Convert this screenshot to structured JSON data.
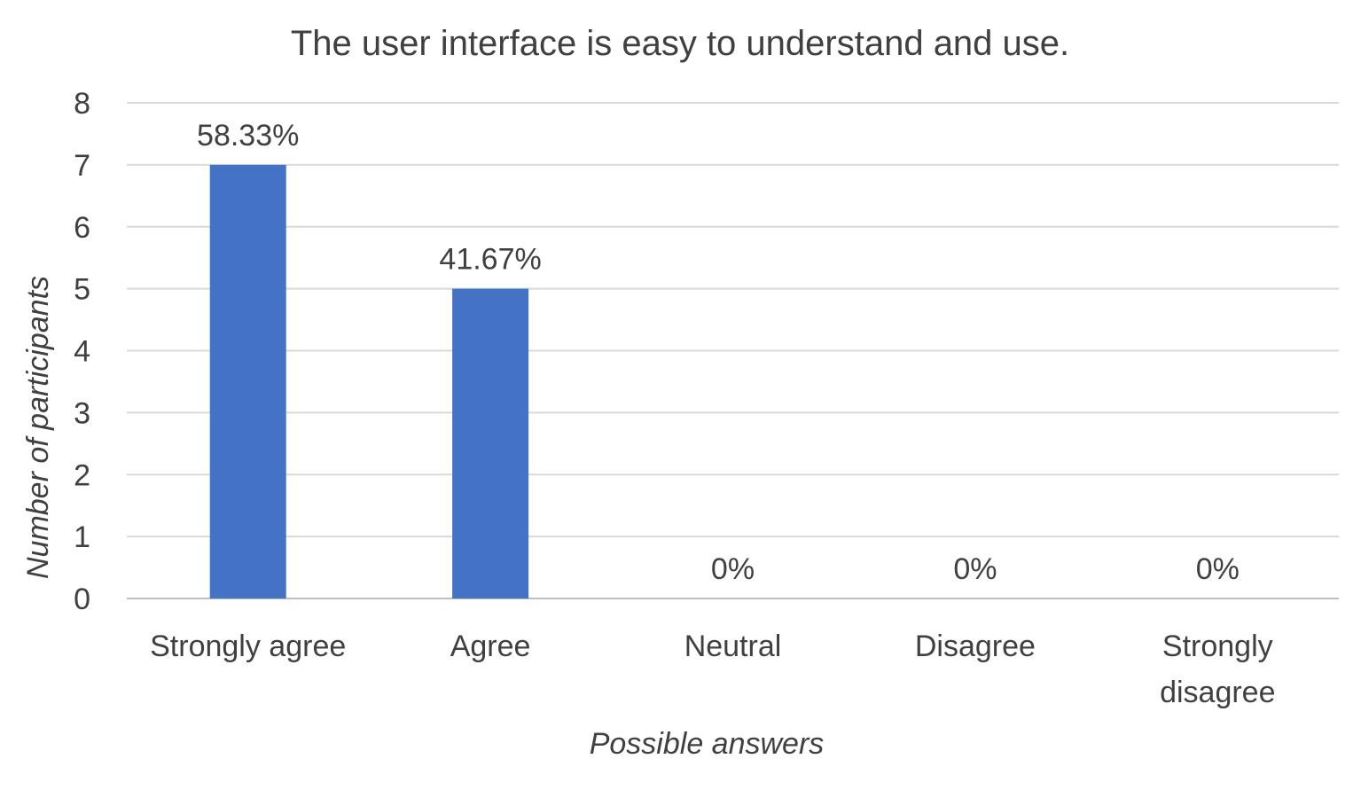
{
  "chart_data": {
    "type": "bar",
    "title": "The user interface is easy to understand and use.",
    "xlabel": "Possible answers",
    "ylabel": "Number of participants",
    "categories": [
      [
        "Strongly agree"
      ],
      [
        "Agree"
      ],
      [
        "Neutral"
      ],
      [
        "Disagree"
      ],
      [
        "Strongly",
        "disagree"
      ]
    ],
    "values": [
      7,
      5,
      0,
      0,
      0
    ],
    "data_labels": [
      "58.33%",
      "41.67%",
      "0%",
      "0%",
      "0%"
    ],
    "ylim": [
      0,
      8
    ],
    "yticks": [
      "0",
      "1",
      "2",
      "3",
      "4",
      "5",
      "6",
      "7",
      "8"
    ],
    "grid": true,
    "legend": "none",
    "bar_color": "#4472c4",
    "text_color": "#404040",
    "grid_color": "#d9d9d9"
  }
}
